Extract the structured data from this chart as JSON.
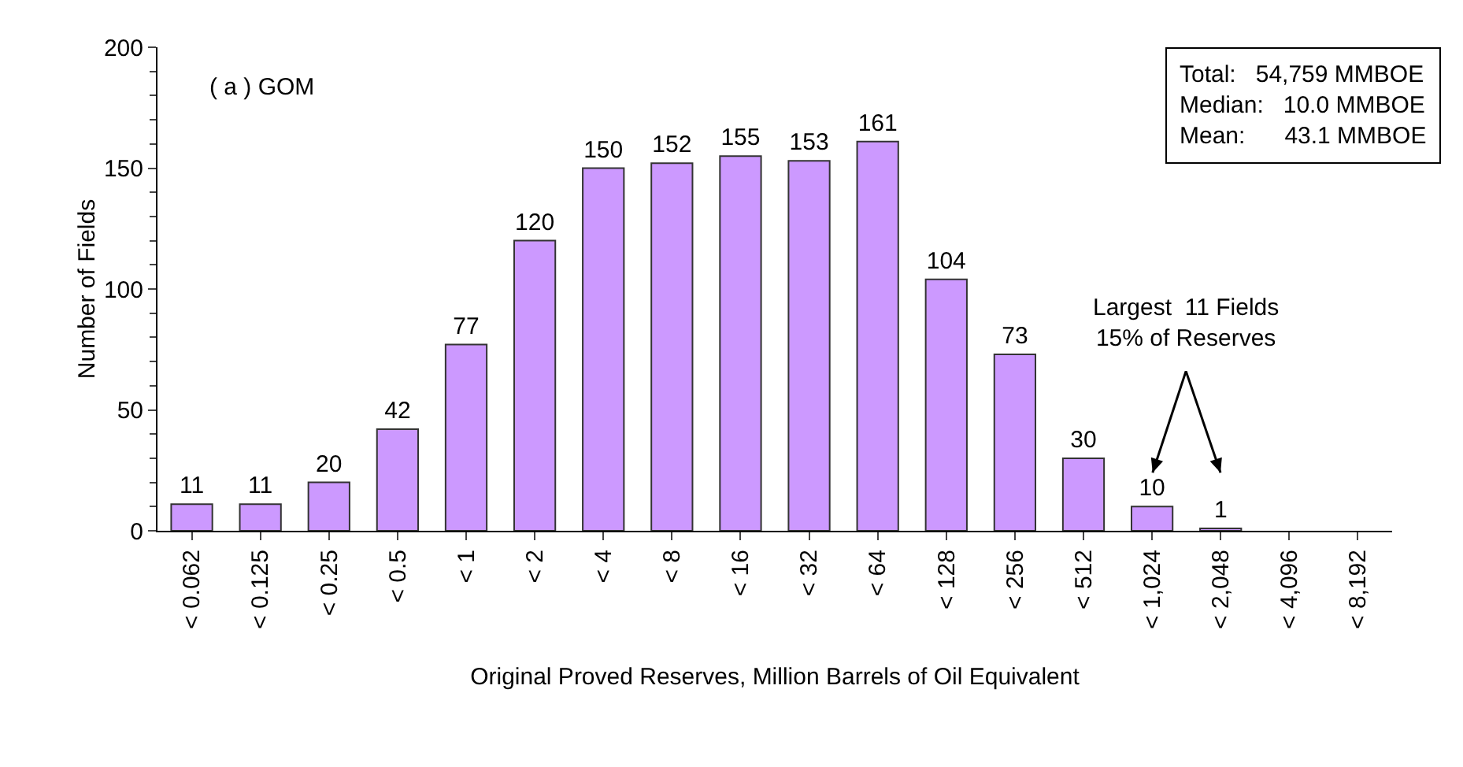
{
  "chart_data": {
    "type": "bar",
    "xlabel": "Original Proved Reserves, Million Barrels of Oil Equivalent",
    "ylabel": "Number of Fields",
    "categories": [
      "< 0.062",
      "< 0.125",
      "< 0.25",
      "< 0.5",
      "< 1",
      "< 2",
      "< 4",
      "< 8",
      "< 16",
      "< 32",
      "< 64",
      "< 128",
      "< 256",
      "< 512",
      "< 1,024",
      "< 2,048",
      "< 4,096",
      "< 8,192"
    ],
    "values": [
      11,
      11,
      20,
      42,
      77,
      120,
      150,
      152,
      155,
      153,
      161,
      104,
      73,
      30,
      10,
      1,
      null,
      null
    ],
    "color": "#cc99ff",
    "ylim": [
      0,
      200
    ],
    "yticks": [
      0,
      50,
      100,
      150,
      200
    ],
    "grid": false,
    "data_labels": true,
    "annotations": [
      "( a ) GOM",
      "Total:   54,759 MMBOE\nMedian:   10.0 MMBOE\nMean:      43.1 MMBOE",
      "Largest  11 Fields\n15% of Reserves"
    ]
  }
}
